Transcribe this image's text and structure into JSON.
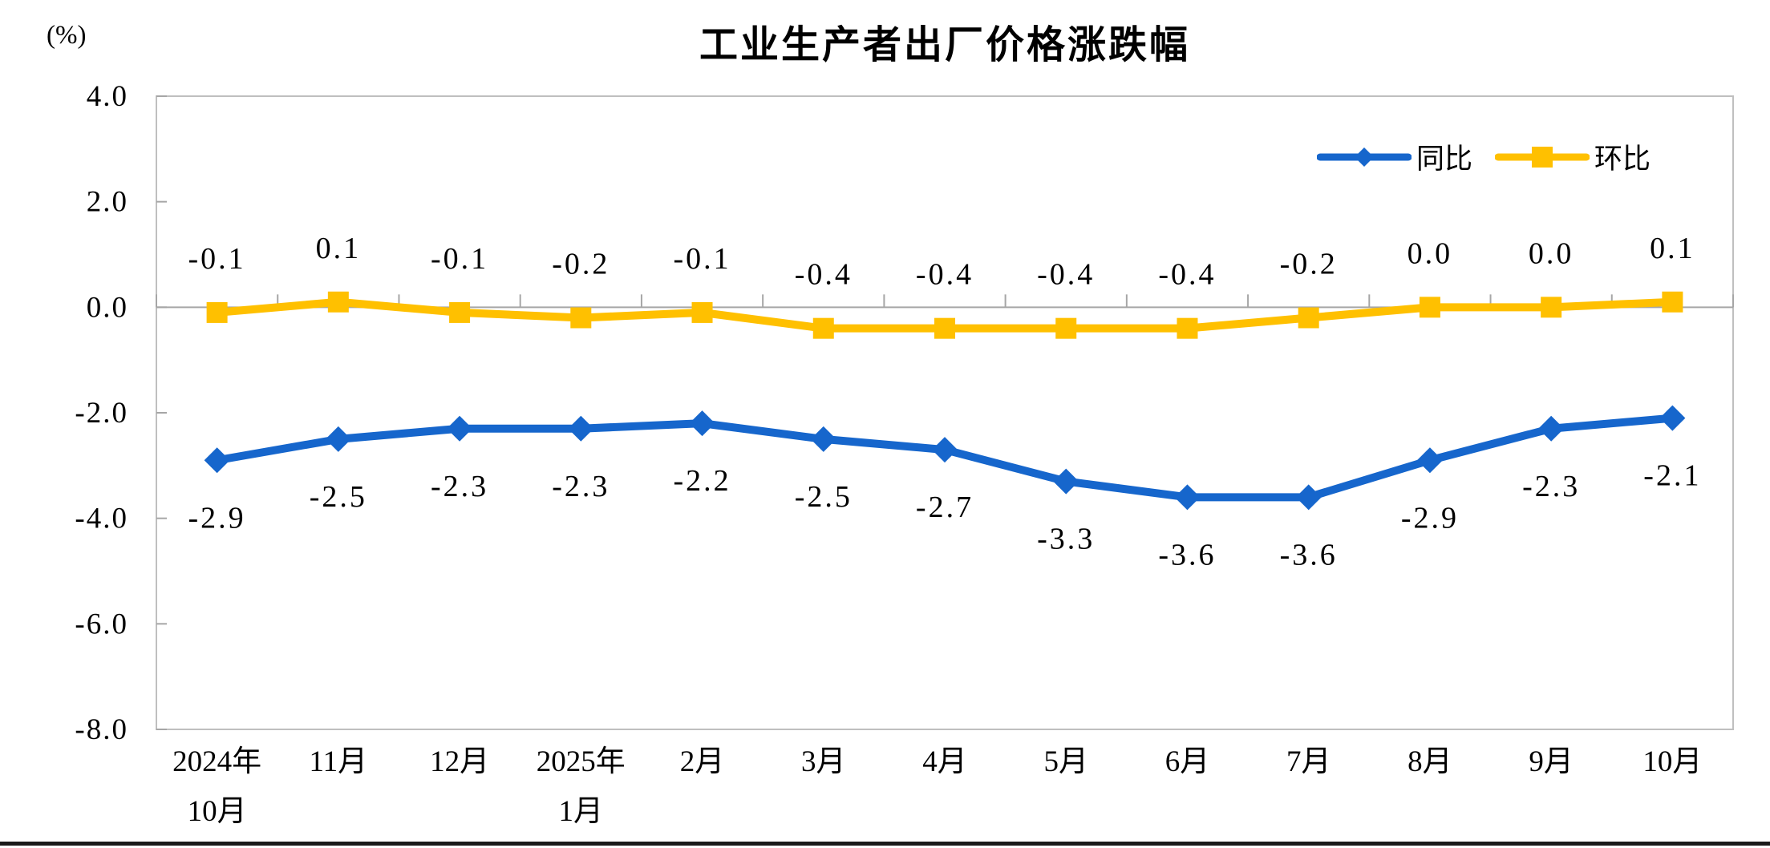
{
  "chart_data": {
    "type": "line",
    "title": "工业生产者出厂价格涨跌幅",
    "ylabel": "(%)",
    "ylim": [
      -8,
      4
    ],
    "yticks": [
      "4.0",
      "2.0",
      "0.0",
      "-2.0",
      "-4.0",
      "-6.0",
      "-8.0"
    ],
    "grid": "zero-axis-only",
    "legend_position": "top-right",
    "categories": [
      {
        "line1": "2024年",
        "line2": "10月"
      },
      {
        "line1": "11月",
        "line2": ""
      },
      {
        "line1": "12月",
        "line2": ""
      },
      {
        "line1": "2025年",
        "line2": "1月"
      },
      {
        "line1": "2月",
        "line2": ""
      },
      {
        "line1": "3月",
        "line2": ""
      },
      {
        "line1": "4月",
        "line2": ""
      },
      {
        "line1": "5月",
        "line2": ""
      },
      {
        "line1": "6月",
        "line2": ""
      },
      {
        "line1": "7月",
        "line2": ""
      },
      {
        "line1": "8月",
        "line2": ""
      },
      {
        "line1": "9月",
        "line2": ""
      },
      {
        "line1": "10月",
        "line2": ""
      }
    ],
    "series": [
      {
        "id": "tongbi",
        "name": "同比",
        "color": "#1666CC",
        "marker": "diamond",
        "label_position": "below",
        "values": [
          -2.9,
          -2.5,
          -2.3,
          -2.3,
          -2.2,
          -2.5,
          -2.7,
          -3.3,
          -3.6,
          -3.6,
          -2.9,
          -2.3,
          -2.1
        ],
        "labels": [
          "-2.9",
          "-2.5",
          "-2.3",
          "-2.3",
          "-2.2",
          "-2.5",
          "-2.7",
          "-3.3",
          "-3.6",
          "-3.6",
          "-2.9",
          "-2.3",
          "-2.1"
        ]
      },
      {
        "id": "huanbi",
        "name": "环比",
        "color": "#FFC000",
        "marker": "square",
        "label_position": "above",
        "values": [
          -0.1,
          0.1,
          -0.1,
          -0.2,
          -0.1,
          -0.4,
          -0.4,
          -0.4,
          -0.4,
          -0.2,
          0.0,
          0.0,
          0.1
        ],
        "labels": [
          "-0.1",
          "0.1",
          "-0.1",
          "-0.2",
          "-0.1",
          "-0.4",
          "-0.4",
          "-0.4",
          "-0.4",
          "-0.2",
          "0.0",
          "0.0",
          "0.1"
        ]
      }
    ],
    "colors": {
      "plot_border": "#BFBFBF",
      "axis_line": "#A6A6A6",
      "text": "#000000",
      "bottom_divider": "#1a1a1a"
    }
  }
}
